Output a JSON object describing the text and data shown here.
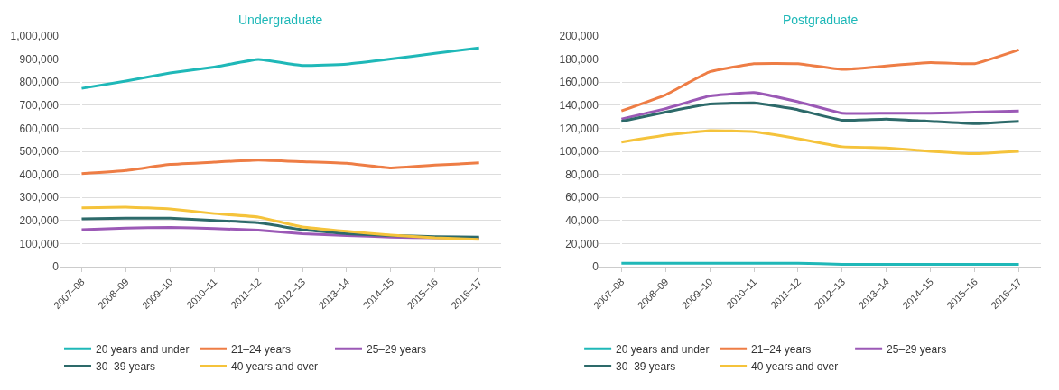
{
  "chart_data": [
    {
      "type": "line",
      "title": "Undergraduate",
      "categories": [
        "2007–08",
        "2008–09",
        "2009–10",
        "2010–11",
        "2011–12",
        "2012–13",
        "2013–14",
        "2014–15",
        "2015–16",
        "2016–17"
      ],
      "ylim": [
        0,
        1000000
      ],
      "yticks": [
        {
          "value": 0,
          "label": "0"
        },
        {
          "value": 100000,
          "label": "100,000"
        },
        {
          "value": 200000,
          "label": "200,000"
        },
        {
          "value": 300000,
          "label": "300,000"
        },
        {
          "value": 400000,
          "label": "400,000"
        },
        {
          "value": 500000,
          "label": "500,000"
        },
        {
          "value": 600000,
          "label": "600,000"
        },
        {
          "value": 700000,
          "label": "700,000"
        },
        {
          "value": 800000,
          "label": "800,000"
        },
        {
          "value": 900000,
          "label": "900,000"
        },
        {
          "value": 1000000,
          "label": "1,000,000"
        }
      ],
      "grid": "y",
      "legend": "bottom",
      "marker": "none",
      "line_style": "solid",
      "series": [
        {
          "name": "20 years and under",
          "color": "#1fb8b8",
          "values": [
            773000,
            805000,
            840000,
            865000,
            898000,
            872000,
            878000,
            900000,
            925000,
            948000
          ]
        },
        {
          "name": "21–24 years",
          "color": "#ee7d45",
          "values": [
            403000,
            417000,
            443000,
            453000,
            462000,
            455000,
            448000,
            428000,
            440000,
            450000
          ]
        },
        {
          "name": "25–29 years",
          "color": "#9b59b6",
          "values": [
            160000,
            167000,
            170000,
            165000,
            158000,
            143000,
            135000,
            128000,
            125000,
            122000
          ]
        },
        {
          "name": "30–39 years",
          "color": "#2d6a6a",
          "values": [
            207000,
            210000,
            210000,
            200000,
            190000,
            160000,
            143000,
            135000,
            130000,
            128000
          ]
        },
        {
          "name": "40 years and over",
          "color": "#f5c33b",
          "values": [
            255000,
            258000,
            250000,
            230000,
            215000,
            172000,
            153000,
            137000,
            125000,
            118000
          ]
        }
      ]
    },
    {
      "type": "line",
      "title": "Postgraduate",
      "categories": [
        "2007–08",
        "2008–09",
        "2009–10",
        "2010–11",
        "2011–12",
        "2012–13",
        "2013–14",
        "2014–15",
        "2015–16",
        "2016–17"
      ],
      "ylim": [
        0,
        200000
      ],
      "yticks": [
        {
          "value": 0,
          "label": "0"
        },
        {
          "value": 20000,
          "label": "20,000"
        },
        {
          "value": 40000,
          "label": "40,000"
        },
        {
          "value": 60000,
          "label": "60,000"
        },
        {
          "value": 80000,
          "label": "80,000"
        },
        {
          "value": 100000,
          "label": "100,000"
        },
        {
          "value": 120000,
          "label": "120,000"
        },
        {
          "value": 140000,
          "label": "140,000"
        },
        {
          "value": 160000,
          "label": "160,000"
        },
        {
          "value": 180000,
          "label": "180,000"
        },
        {
          "value": 200000,
          "label": "200,000"
        }
      ],
      "grid": "y",
      "legend": "bottom",
      "marker": "none",
      "line_style": "solid",
      "series": [
        {
          "name": "20 years and under",
          "color": "#1fb8b8",
          "values": [
            3000,
            3000,
            3000,
            3000,
            3000,
            2000,
            2000,
            2000,
            2000,
            2000
          ]
        },
        {
          "name": "21–24 years",
          "color": "#ee7d45",
          "values": [
            135000,
            149000,
            169000,
            176000,
            176000,
            171000,
            174000,
            177000,
            176000,
            188000
          ]
        },
        {
          "name": "25–29 years",
          "color": "#9b59b6",
          "values": [
            128000,
            137000,
            148000,
            151000,
            143000,
            133000,
            133000,
            133000,
            134000,
            135000
          ]
        },
        {
          "name": "30–39 years",
          "color": "#2d6a6a",
          "values": [
            126000,
            134000,
            141000,
            142000,
            136000,
            127000,
            128000,
            126000,
            124000,
            126000
          ]
        },
        {
          "name": "40 years and over",
          "color": "#f5c33b",
          "values": [
            108000,
            114000,
            118000,
            117000,
            111000,
            104000,
            103000,
            100000,
            98000,
            100000
          ]
        }
      ]
    }
  ]
}
